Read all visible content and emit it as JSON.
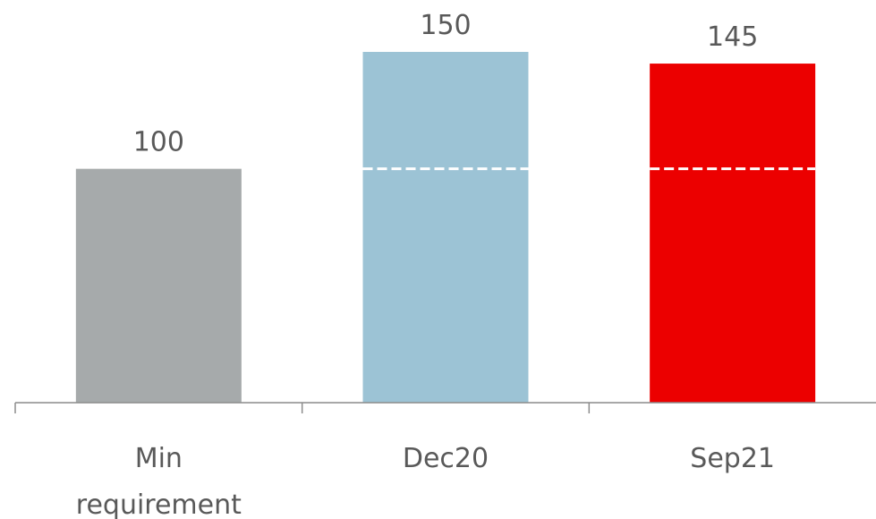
{
  "chart_data": {
    "type": "bar",
    "categories": [
      [
        "Min",
        "requirement"
      ],
      [
        "Dec20"
      ],
      [
        "Sep21"
      ]
    ],
    "values": [
      100,
      150,
      145
    ],
    "data_labels": [
      "100",
      "150",
      "145"
    ],
    "reference_line": 100,
    "ylim": [
      0,
      150
    ],
    "grid": false,
    "legend": "none",
    "colors": {
      "bars": [
        "#a6aaab",
        "#9cc3d5",
        "#ec0000"
      ],
      "reference_line": "#ffffff",
      "axis": "#8c8c8c",
      "text": "#595959"
    }
  }
}
